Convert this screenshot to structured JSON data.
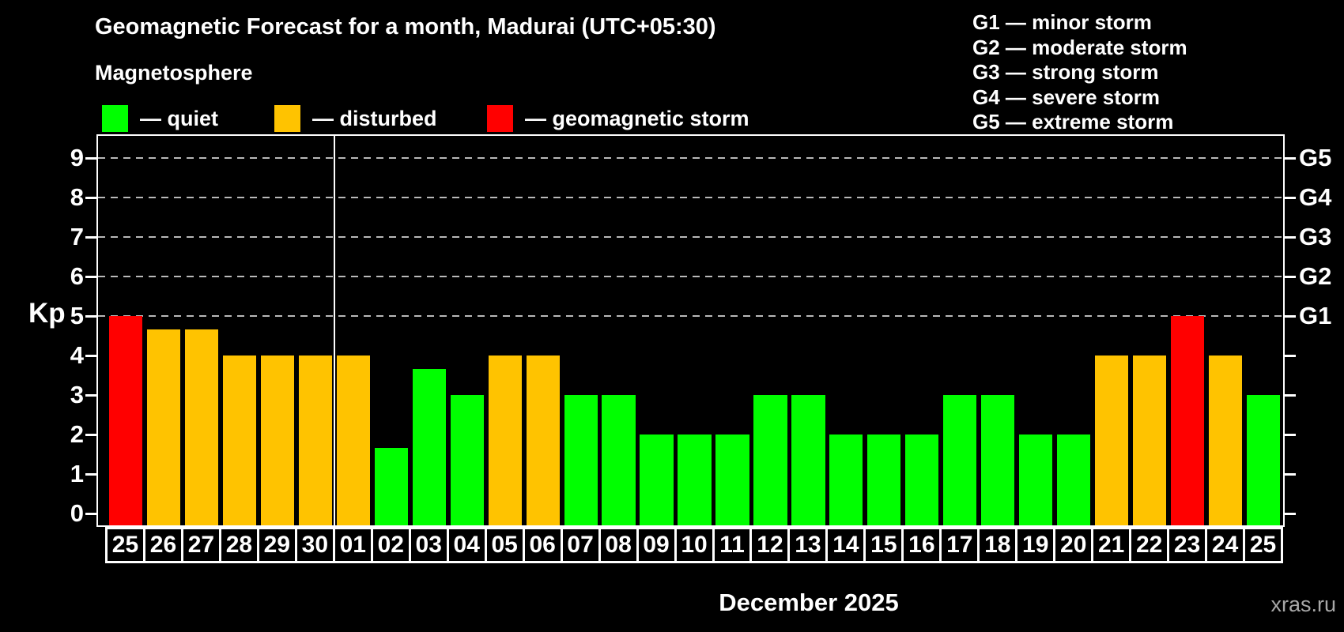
{
  "header": {
    "title": "Geomagnetic Forecast for a month, Madurai (UTC+05:30)",
    "subtitle": "Magnetosphere"
  },
  "legend": {
    "items": [
      {
        "label": "— quiet",
        "status": "quiet"
      },
      {
        "label": "— disturbed",
        "status": "disturbed"
      },
      {
        "label": "— geomagnetic storm",
        "status": "storm"
      }
    ]
  },
  "g_scale_legend": [
    "G1 — minor storm",
    "G2 — moderate storm",
    "G3 — strong storm",
    "G4 — severe storm",
    "G5 — extreme storm"
  ],
  "axes": {
    "y_label": "Kp",
    "y_ticks": [
      0,
      1,
      2,
      3,
      4,
      5,
      6,
      7,
      8,
      9
    ],
    "right_axis_labels": [
      {
        "kp": 5,
        "label": "G1"
      },
      {
        "kp": 6,
        "label": "G2"
      },
      {
        "kp": 7,
        "label": "G3"
      },
      {
        "kp": 8,
        "label": "G4"
      },
      {
        "kp": 9,
        "label": "G5"
      }
    ],
    "x_label": "December 2025"
  },
  "watermark": "xras.ru",
  "colors": {
    "quiet": "#00ff00",
    "disturbed": "#ffc300",
    "storm": "#ff0000",
    "grid": "#b9b9b9",
    "frame": "#ffffff",
    "watermark": "#a8a8a8"
  },
  "chart_data": {
    "type": "bar",
    "title": "Geomagnetic Forecast for a month, Madurai (UTC+05:30)",
    "xlabel": "December 2025",
    "ylabel": "Kp",
    "ylim": [
      0,
      9.6
    ],
    "grid": "dashed horizontal at Kp 5-9 only",
    "legend_position": "top",
    "gridlines_at": [
      5,
      6,
      7,
      8,
      9
    ],
    "month_separator_after_index": 5,
    "categories": [
      "25",
      "26",
      "27",
      "28",
      "29",
      "30",
      "01",
      "02",
      "03",
      "04",
      "05",
      "06",
      "07",
      "08",
      "09",
      "10",
      "11",
      "12",
      "13",
      "14",
      "15",
      "16",
      "17",
      "18",
      "19",
      "20",
      "21",
      "22",
      "23",
      "24",
      "25"
    ],
    "values": [
      5,
      4.67,
      4.67,
      4,
      4,
      4,
      4,
      1.67,
      3.67,
      3,
      4,
      4,
      3,
      3,
      2,
      2,
      2,
      3,
      3,
      2,
      2,
      2,
      3,
      3,
      2,
      2,
      4,
      4,
      5,
      4,
      3
    ],
    "statuses": [
      "storm",
      "disturbed",
      "disturbed",
      "disturbed",
      "disturbed",
      "disturbed",
      "disturbed",
      "quiet",
      "quiet",
      "quiet",
      "disturbed",
      "disturbed",
      "quiet",
      "quiet",
      "quiet",
      "quiet",
      "quiet",
      "quiet",
      "quiet",
      "quiet",
      "quiet",
      "quiet",
      "quiet",
      "quiet",
      "quiet",
      "quiet",
      "disturbed",
      "disturbed",
      "storm",
      "disturbed",
      "quiet"
    ]
  }
}
